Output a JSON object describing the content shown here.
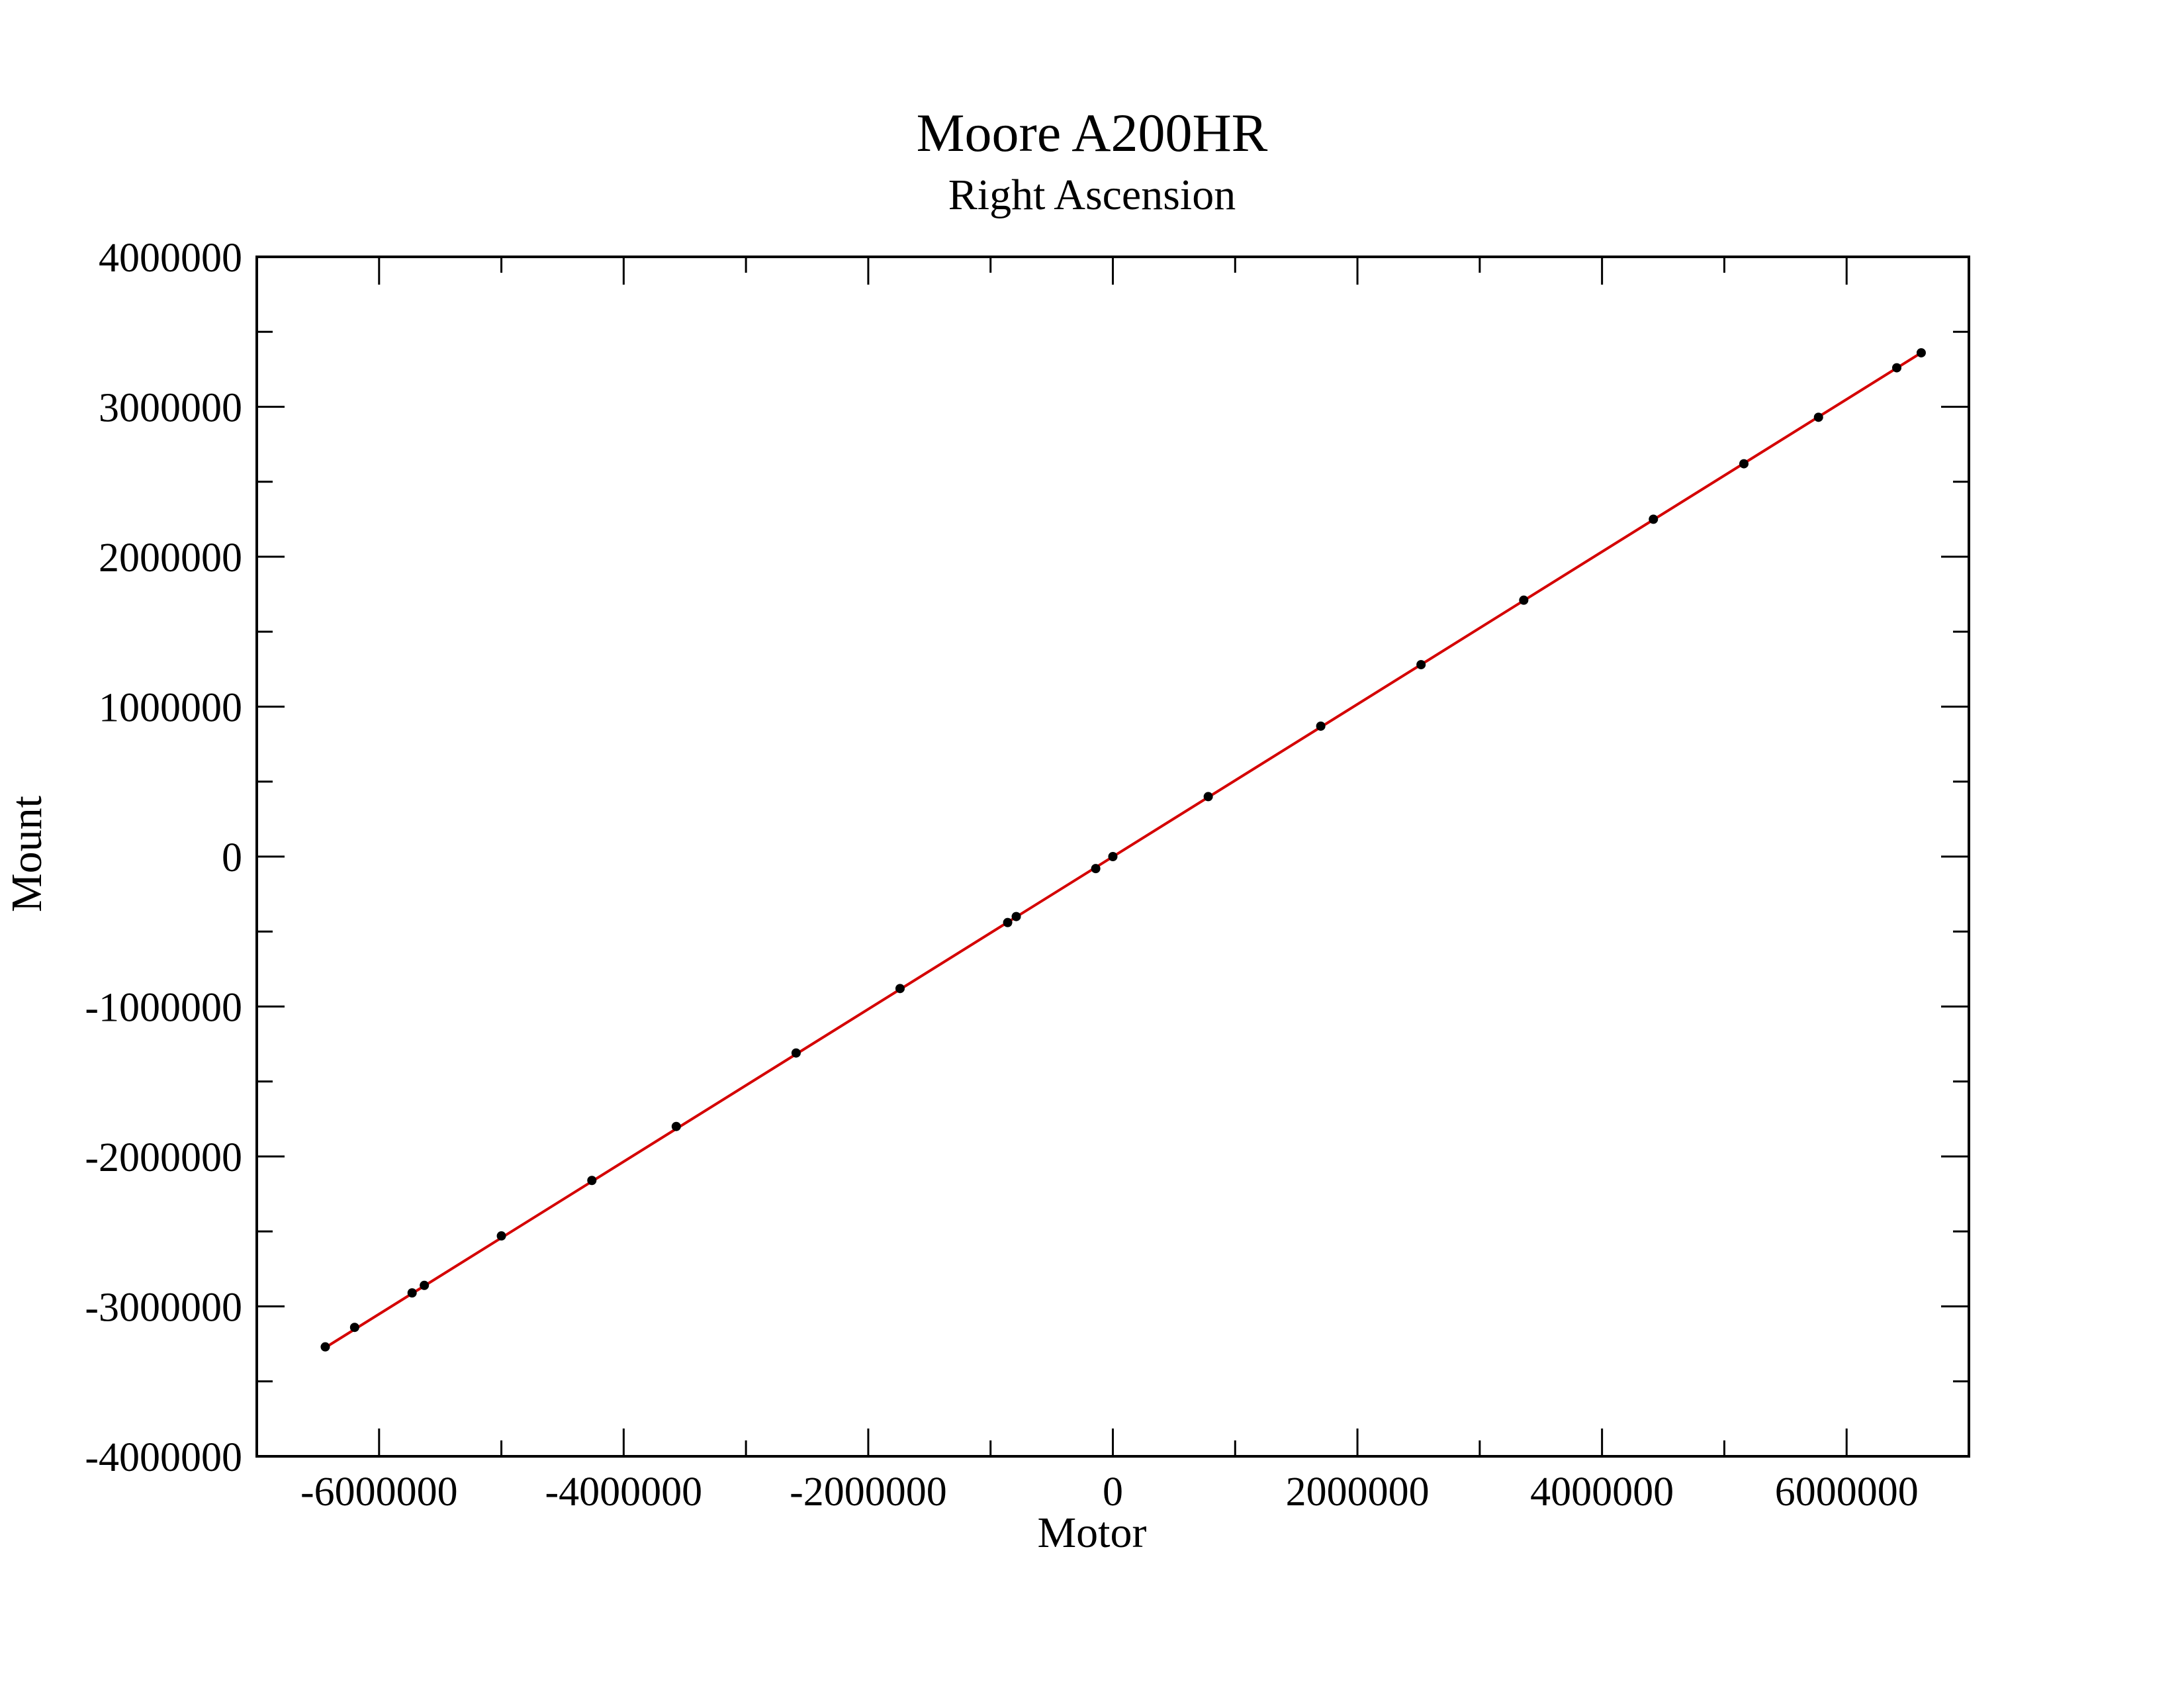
{
  "chart_data": {
    "type": "scatter",
    "title": "Moore A200HR",
    "subtitle": "Right Ascension",
    "xlabel": "Motor",
    "ylabel": "Mount",
    "xlim": [
      -7000000,
      7000000
    ],
    "ylim": [
      -4000000,
      4000000
    ],
    "x_major_ticks": [
      -6000000,
      -4000000,
      -2000000,
      0,
      2000000,
      4000000,
      6000000
    ],
    "x_tick_labels": [
      "-6000000",
      "-4000000",
      "-2000000",
      "0",
      "2000000",
      "4000000",
      "6000000"
    ],
    "y_major_ticks": [
      -4000000,
      -3000000,
      -2000000,
      -1000000,
      0,
      1000000,
      2000000,
      3000000,
      4000000
    ],
    "y_tick_labels": [
      "-4000000",
      "-3000000",
      "-2000000",
      "-1000000",
      "0",
      "1000000",
      "2000000",
      "3000000",
      "4000000"
    ],
    "grid": false,
    "legend": "none",
    "series": [
      {
        "kind": "points",
        "color": "#000000",
        "x": [
          -6440000,
          -6200000,
          -5730000,
          -5630000,
          -5000000,
          -4260000,
          -3570000,
          -2590000,
          -1740000,
          -860000,
          -790000,
          -140000,
          0,
          780000,
          1700000,
          2520000,
          3360000,
          4420000,
          5160000,
          5770000,
          6410000,
          6610000
        ],
        "y": [
          -3270000,
          -3140000,
          -2910000,
          -2860000,
          -2530000,
          -2160000,
          -1800000,
          -1310000,
          -880000,
          -440000,
          -400000,
          -80000,
          0,
          400000,
          870000,
          1280000,
          1710000,
          2250000,
          2620000,
          2930000,
          3260000,
          3360000
        ]
      },
      {
        "kind": "fit-line",
        "color": "#d40000",
        "x": [
          -6440000,
          6610000
        ],
        "y": [
          -3275000,
          3360000
        ]
      }
    ]
  }
}
